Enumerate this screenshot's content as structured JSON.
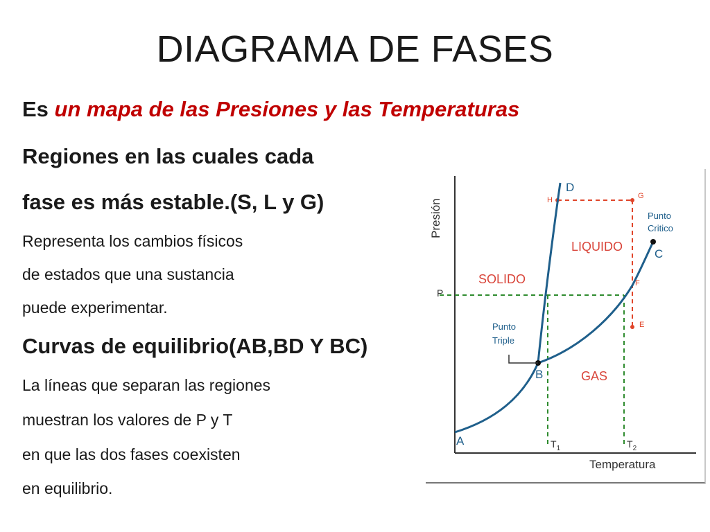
{
  "slide": {
    "title": "DIAGRAMA DE FASES",
    "lines": {
      "l1_prefix": "Es ",
      "l1_emph": "un mapa de las Presiones y las Temperaturas",
      "l2": "Regiones en las cuales cada",
      "l3": "fase es más estable.(S, L y G)",
      "l4": "Representa los cambios físicos",
      "l5": "de estados que una sustancia",
      "l6": "puede experimentar.",
      "l7": "Curvas de equilibrio(AB,BD Y BC)",
      "l8": "La líneas que separan las regiones",
      "l9": "muestran los valores de P y T",
      "l10": "en que las dos fases coexisten",
      "l11": "en equilibrio."
    },
    "colors": {
      "emphasis": "#c00000",
      "curve": "#1f5f8b",
      "dash_green": "#2e8b2e",
      "dash_red": "#e0452a"
    }
  },
  "diagram": {
    "axis_y": "Presión",
    "axis_x": "Temperatura",
    "regions": {
      "solid": "SOLIDO",
      "liquid": "LIQUIDO",
      "gas": "GAS"
    },
    "points": {
      "A": "A",
      "B": "B",
      "C": "C",
      "D": "D",
      "E": "E",
      "F": "F",
      "G": "G",
      "H": "H",
      "P": "P"
    },
    "triple_point": {
      "line1": "Punto",
      "line2": "Triple"
    },
    "critical_point": {
      "line1": "Punto",
      "line2": "Critico"
    },
    "ticks": {
      "t1": "T",
      "t1_sub": "1",
      "t2": "T",
      "t2_sub": "2"
    }
  }
}
